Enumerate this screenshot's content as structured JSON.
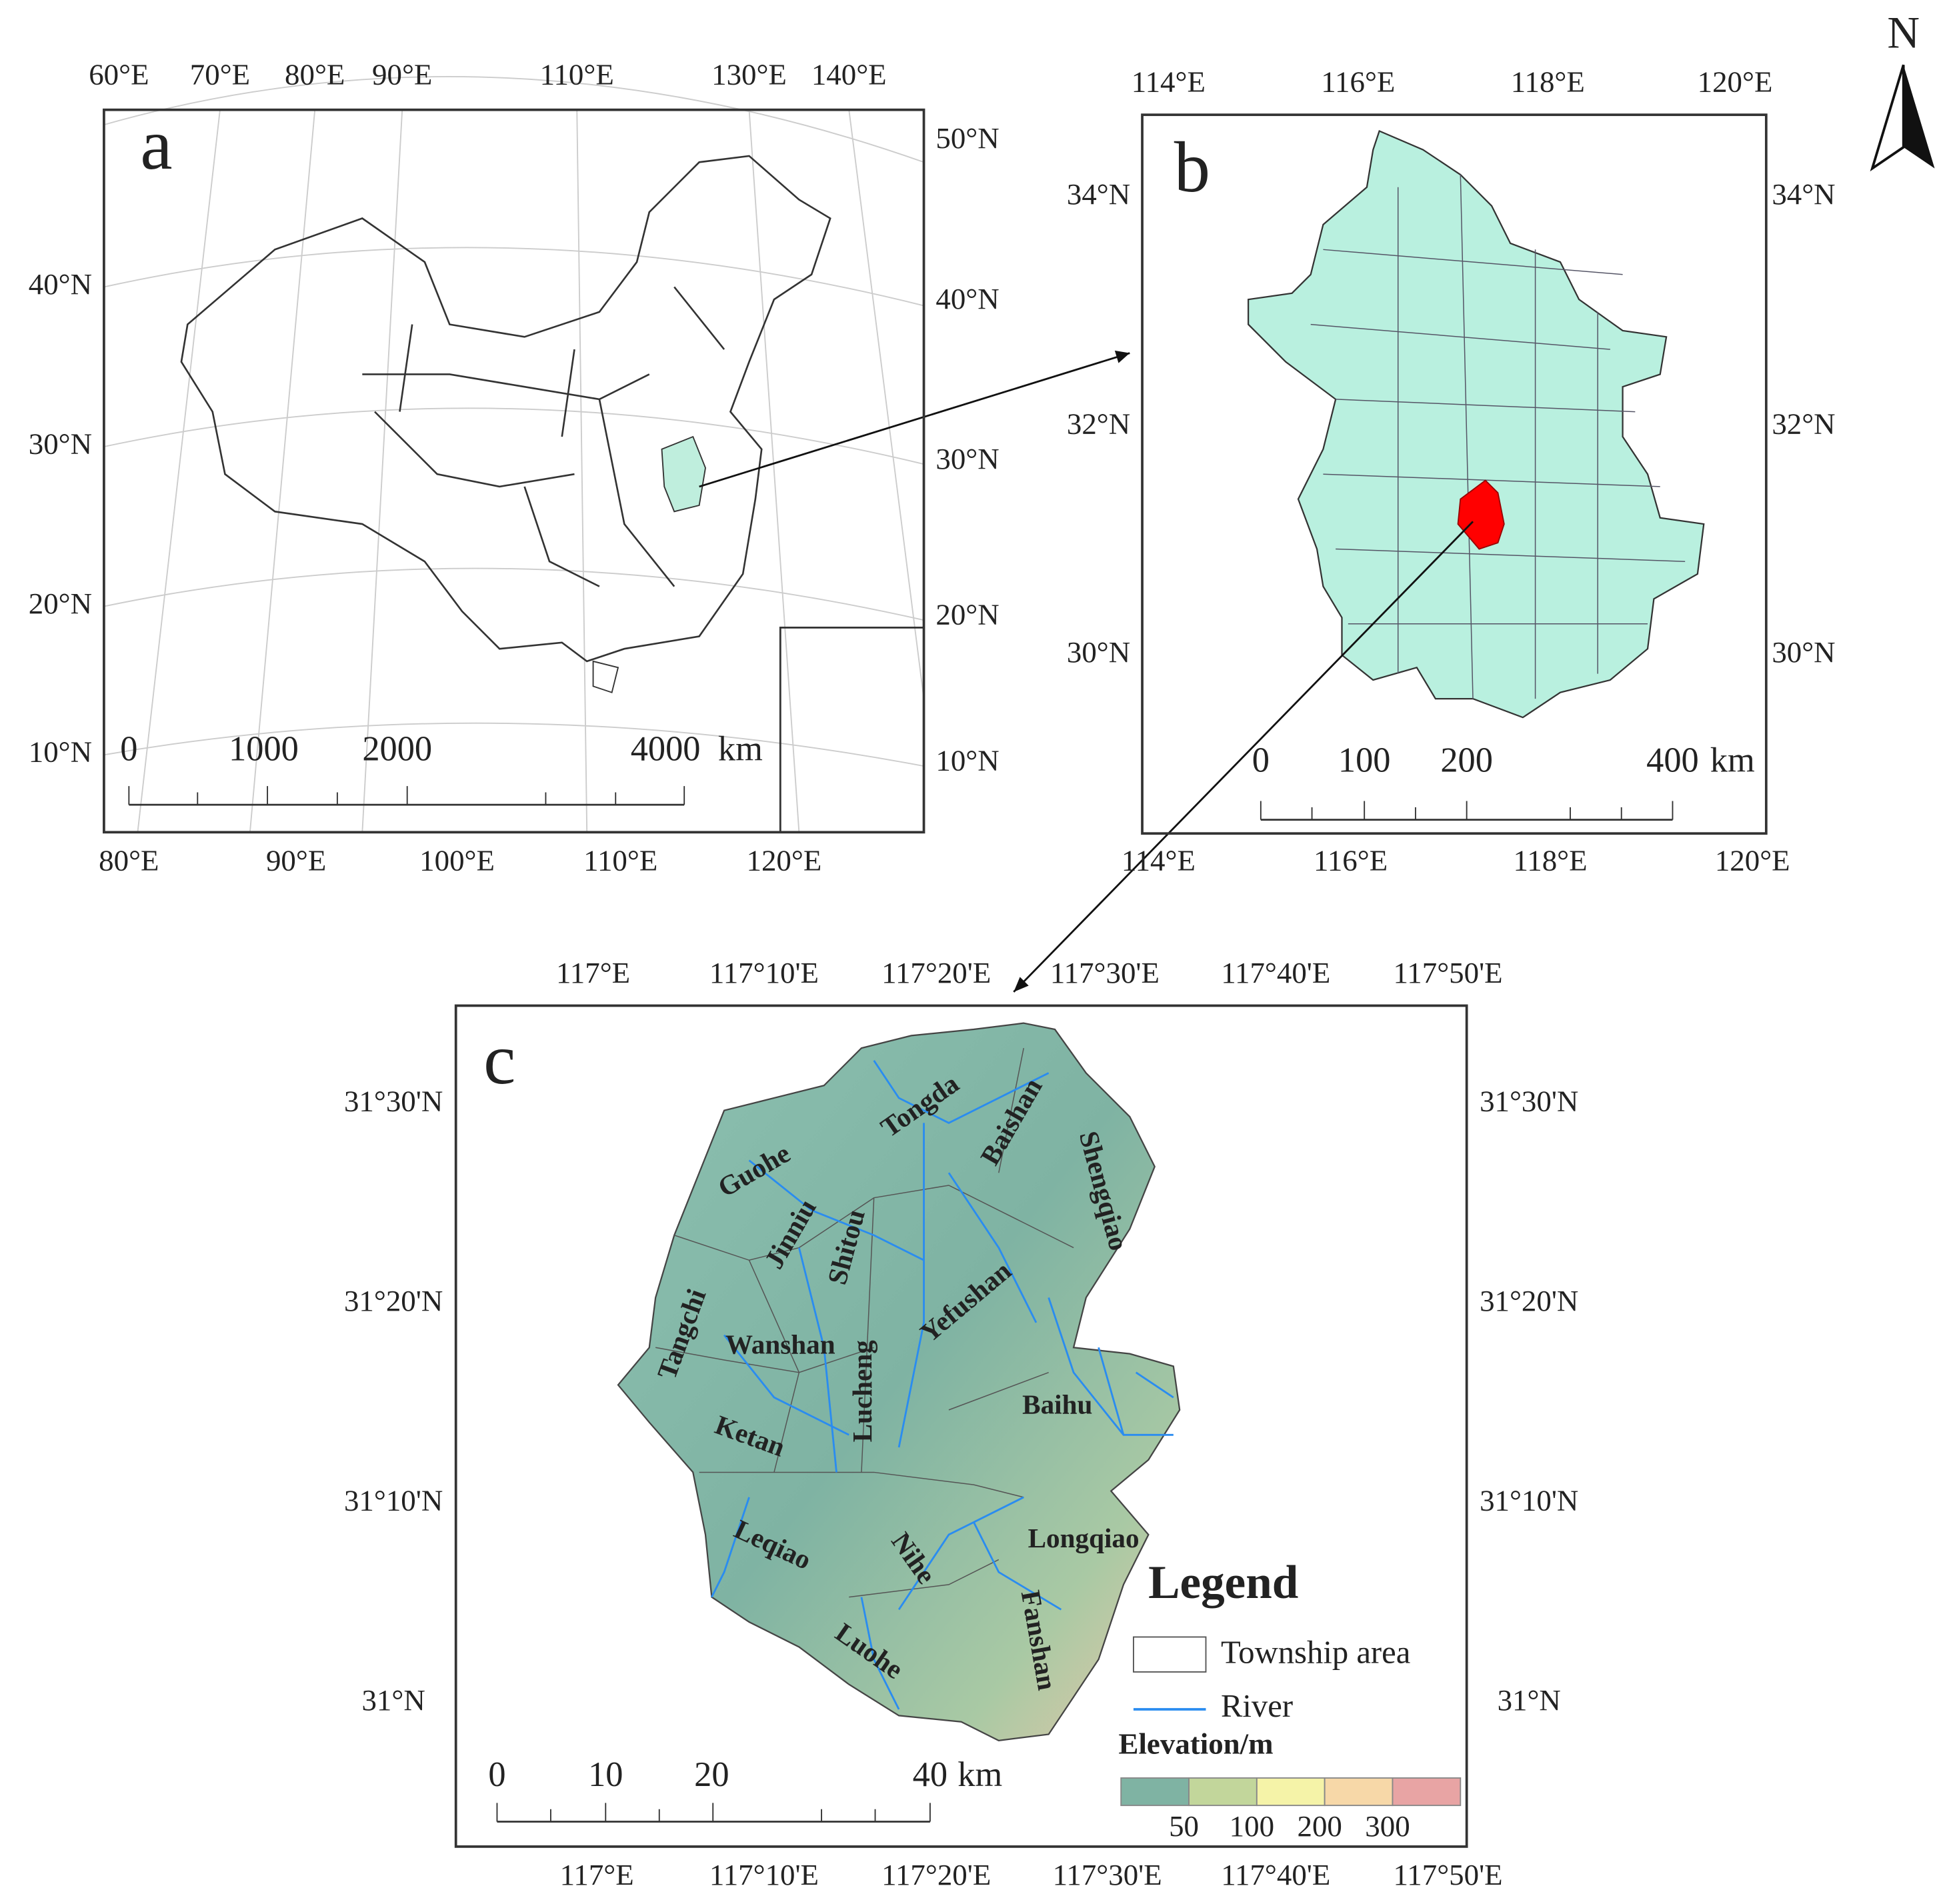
{
  "north_arrow": "N",
  "panel_a": {
    "label": "a",
    "top_ticks": [
      "60°E",
      "70°E",
      "80°E",
      "90°E",
      "110°E",
      "130°E",
      "140°E"
    ],
    "bottom_ticks": [
      "80°E",
      "90°E",
      "100°E",
      "110°E",
      "120°E"
    ],
    "left_ticks": [
      "40°N",
      "30°N",
      "20°N",
      "10°N"
    ],
    "right_ticks": [
      "50°N",
      "40°N",
      "30°N",
      "20°N",
      "10°N"
    ],
    "scale_labels": [
      0,
      1000,
      2000,
      4000
    ],
    "scale_unit": "km"
  },
  "panel_b": {
    "label": "b",
    "top_ticks": [
      "114°E",
      "116°E",
      "118°E",
      "120°E"
    ],
    "bottom_ticks": [
      "114°E",
      "116°E",
      "118°E",
      "120°E"
    ],
    "left_ticks": [
      "34°N",
      "32°N",
      "30°N"
    ],
    "right_ticks": [
      "34°N",
      "32°N",
      "30°N"
    ],
    "scale_labels": [
      0,
      100,
      200,
      400
    ],
    "scale_unit": "km"
  },
  "panel_c": {
    "label": "c",
    "top_ticks": [
      "117°E",
      "117°10'E",
      "117°20'E",
      "117°30'E",
      "117°40'E",
      "117°50'E"
    ],
    "bottom_ticks": [
      "117°E",
      "117°10'E",
      "117°20'E",
      "117°30'E",
      "117°40'E",
      "117°50'E"
    ],
    "left_ticks": [
      "31°30'N",
      "31°20'N",
      "31°10'N",
      "31°N"
    ],
    "right_ticks": [
      "31°30'N",
      "31°20'N",
      "31°10'N",
      "31°N"
    ],
    "scale_labels": [
      0,
      10,
      20,
      40
    ],
    "scale_unit": "km",
    "towns": [
      "Tongda",
      "Baishan",
      "Shengqiao",
      "Guohe",
      "Jinniu",
      "Shitou",
      "Tangchi",
      "Wanshan",
      "Yefushan",
      "Lucheng",
      "Baihu",
      "Ketan",
      "Leqiao",
      "Nihe",
      "Longqiao",
      "Fanshan",
      "Luohe"
    ],
    "legend": {
      "title": "Legend",
      "township": "Township area",
      "river": "River",
      "elevation_title": "Elevation/m",
      "elevation_ticks": [
        50,
        100,
        200,
        300
      ],
      "elevation_colors": [
        "#7fb3a3",
        "#c2d69b",
        "#f5f3a8",
        "#f7d8a8",
        "#e8a4a4"
      ]
    }
  }
}
